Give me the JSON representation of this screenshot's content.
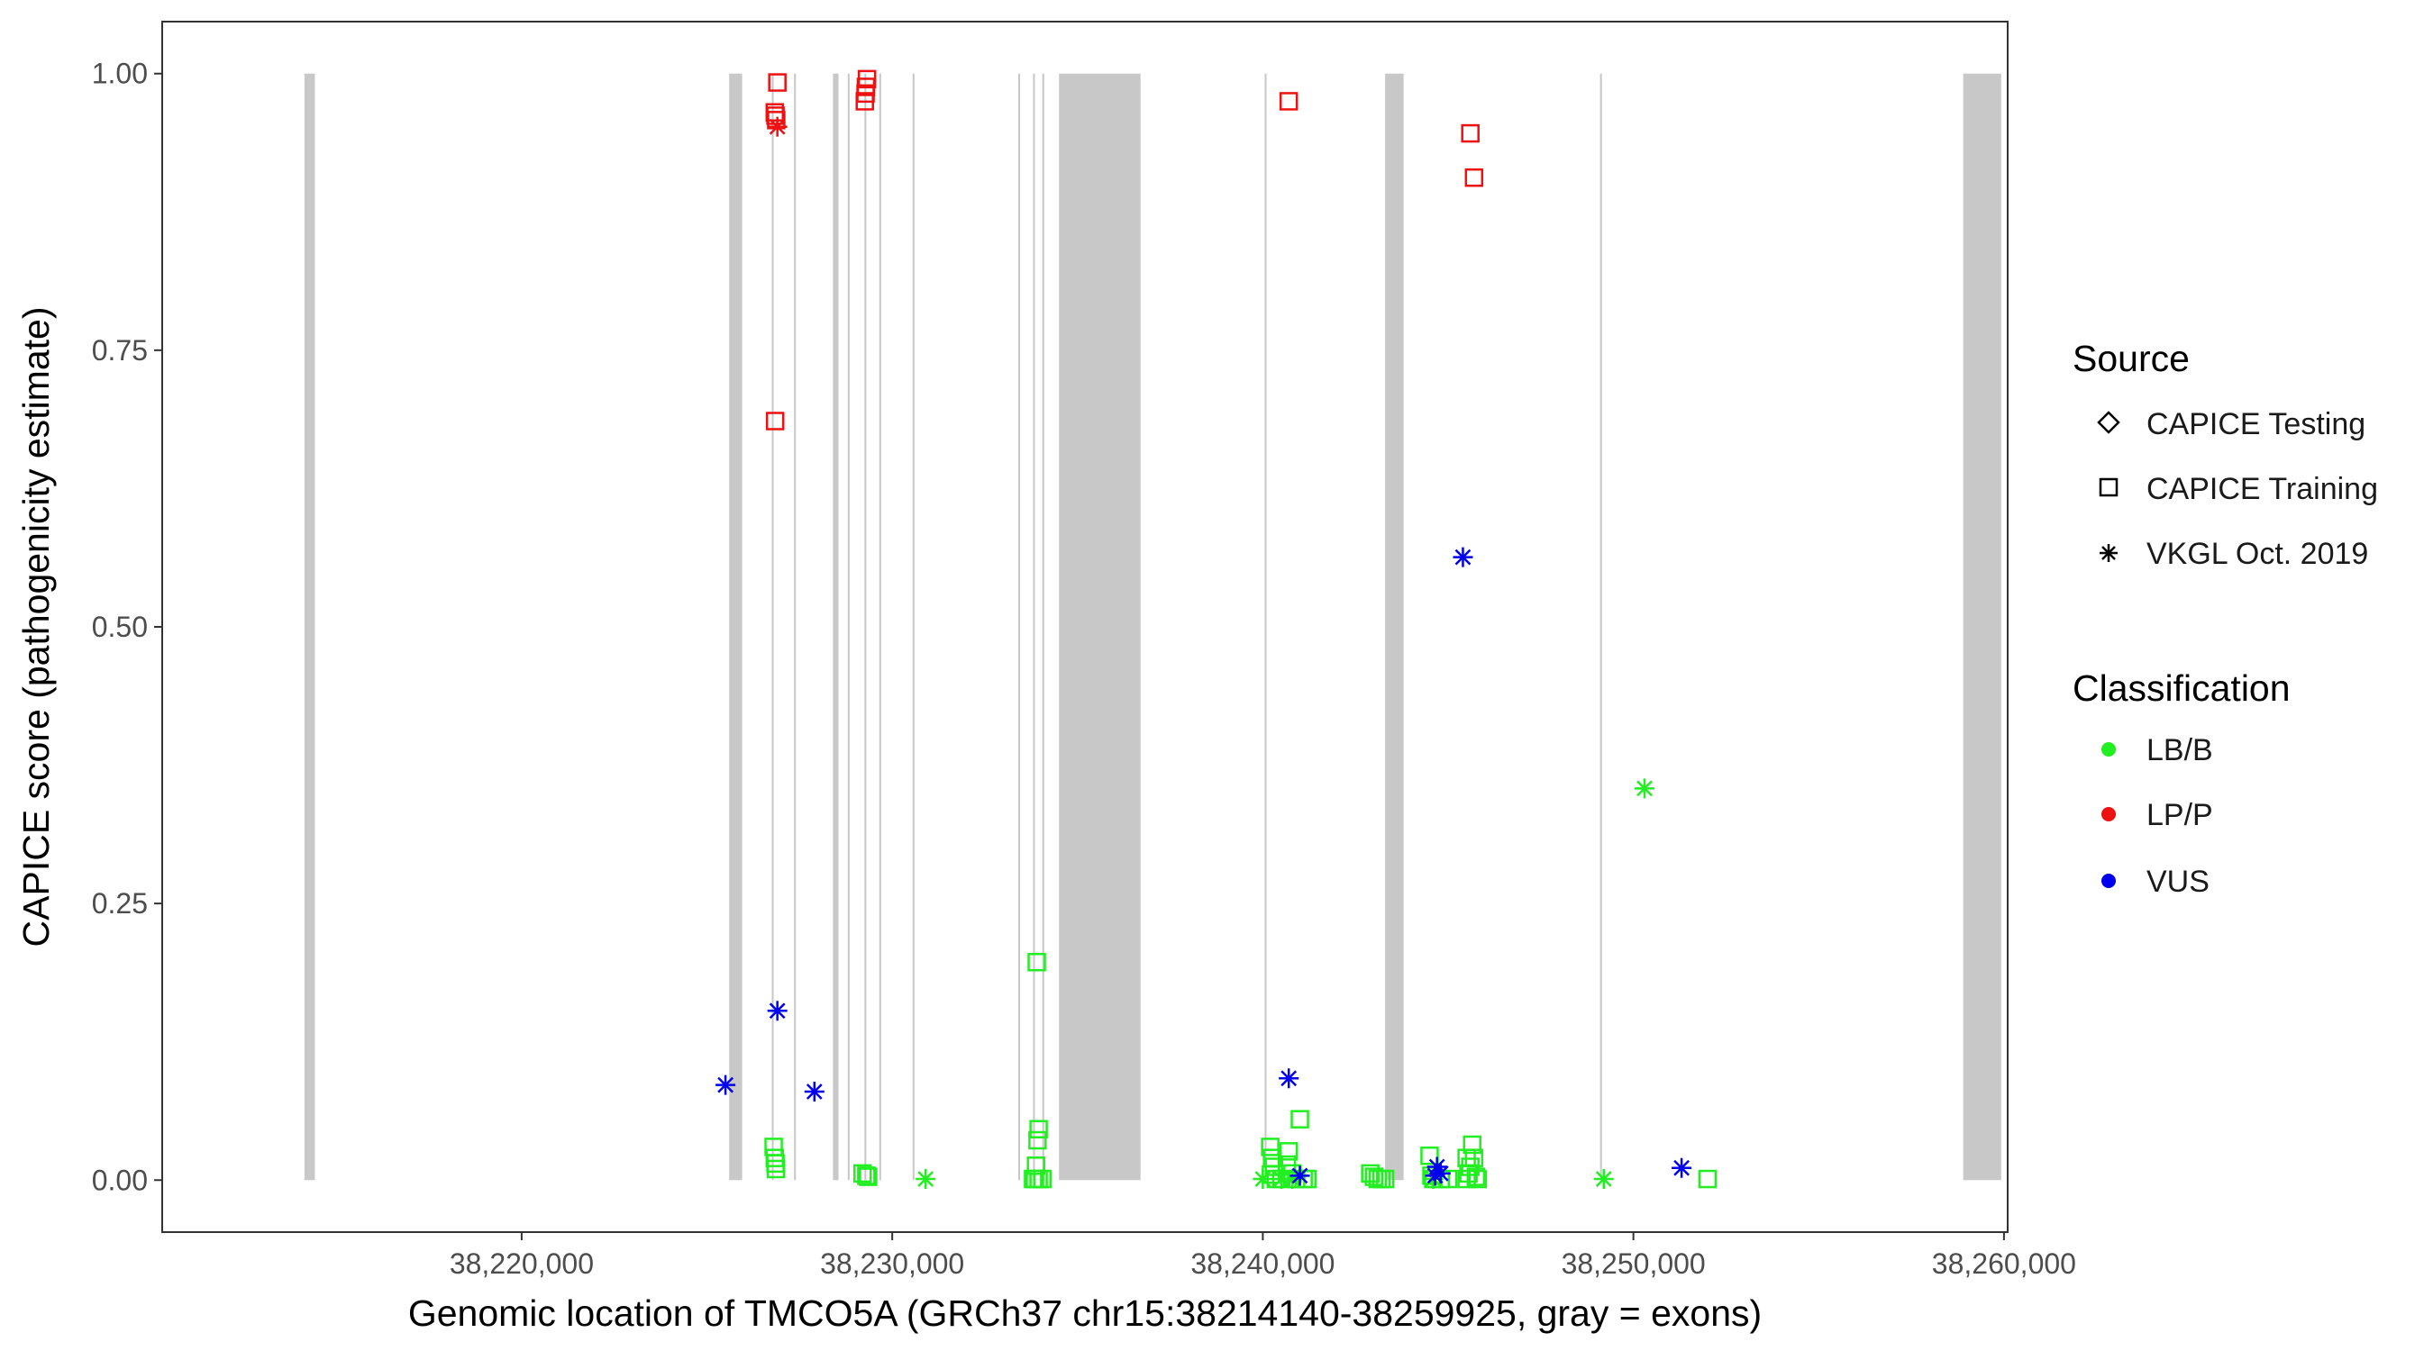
{
  "chart_data": {
    "type": "scatter",
    "title": "",
    "xlabel": "Genomic location of TMCO5A (GRCh37 chr15:38214140-38259925, gray = exons)",
    "ylabel": "CAPICE score (pathogenicity estimate)",
    "xlim": [
      38210300,
      38260100
    ],
    "ylim": [
      -0.047,
      1.047
    ],
    "x_ticks": [
      38220000,
      38230000,
      38240000,
      38250000,
      38260000
    ],
    "x_tick_labels": [
      "38,220,000",
      "38,230,000",
      "38,240,000",
      "38,250,000",
      "38,260,000"
    ],
    "y_ticks": [
      0,
      0.25,
      0.5,
      0.75,
      1.0
    ],
    "y_tick_labels": [
      "0.00",
      "0.25",
      "0.50",
      "0.75",
      "1.00"
    ],
    "grid": false,
    "exon_color": "#c8c8c8",
    "exons": [
      [
        38214140,
        38214420
      ],
      [
        38225600,
        38225950
      ],
      [
        38226750,
        38226800
      ],
      [
        38227350,
        38227400
      ],
      [
        38228400,
        38228550
      ],
      [
        38228800,
        38228850
      ],
      [
        38229250,
        38229300
      ],
      [
        38229650,
        38229700
      ],
      [
        38230550,
        38230600
      ],
      [
        38233400,
        38233450
      ],
      [
        38233800,
        38233850
      ],
      [
        38234050,
        38234100
      ],
      [
        38234500,
        38236700
      ],
      [
        38240050,
        38240100
      ],
      [
        38243300,
        38243800
      ],
      [
        38249100,
        38249150
      ],
      [
        38258900,
        38259925
      ]
    ],
    "legend": {
      "placement": "right",
      "source_title": "Source",
      "source_items": [
        {
          "label": "CAPICE Testing",
          "shape": "diamond"
        },
        {
          "label": "CAPICE Training",
          "shape": "square"
        },
        {
          "label": "VKGL Oct. 2019",
          "shape": "asterisk"
        }
      ],
      "class_title": "Classification",
      "class_items": [
        {
          "label": "LB/B",
          "color": "#22ee22"
        },
        {
          "label": "LP/P",
          "color": "#ee1111"
        },
        {
          "label": "VUS",
          "color": "#0000ee"
        }
      ]
    },
    "series": [
      {
        "source": "CAPICE Training",
        "classification": "LP/P",
        "points": [
          [
            38226900,
            0.992
          ],
          [
            38226830,
            0.965
          ],
          [
            38226850,
            0.962
          ],
          [
            38226870,
            0.958
          ],
          [
            38226840,
            0.686
          ],
          [
            38229320,
            0.995
          ],
          [
            38229290,
            0.988
          ],
          [
            38229280,
            0.982
          ],
          [
            38229260,
            0.975
          ],
          [
            38240700,
            0.975
          ],
          [
            38245600,
            0.946
          ],
          [
            38245700,
            0.906
          ]
        ]
      },
      {
        "source": "VKGL Oct. 2019",
        "classification": "LP/P",
        "points": [
          [
            38226900,
            0.952
          ]
        ]
      },
      {
        "source": "CAPICE Training",
        "classification": "LB/B",
        "points": [
          [
            38226800,
            0.03
          ],
          [
            38226830,
            0.02
          ],
          [
            38226850,
            0.015
          ],
          [
            38226860,
            0.01
          ],
          [
            38229200,
            0.006
          ],
          [
            38229300,
            0.004
          ],
          [
            38229350,
            0.003
          ],
          [
            38233900,
            0.197
          ],
          [
            38233950,
            0.046
          ],
          [
            38233920,
            0.036
          ],
          [
            38233880,
            0.013
          ],
          [
            38233800,
            0.001
          ],
          [
            38233850,
            0.001
          ],
          [
            38233950,
            0.001
          ],
          [
            38234050,
            0.001
          ],
          [
            38240200,
            0.03
          ],
          [
            38240250,
            0.02
          ],
          [
            38240300,
            0.012
          ],
          [
            38240220,
            0.005
          ],
          [
            38240350,
            0.001
          ],
          [
            38240500,
            0.001
          ],
          [
            38240700,
            0.026
          ],
          [
            38240650,
            0.014
          ],
          [
            38240800,
            0.006
          ],
          [
            38240900,
            0.001
          ],
          [
            38241100,
            0.001
          ],
          [
            38241000,
            0.055
          ],
          [
            38241200,
            0.001
          ],
          [
            38242900,
            0.006
          ],
          [
            38243000,
            0.003
          ],
          [
            38243100,
            0.001
          ],
          [
            38243300,
            0.001
          ],
          [
            38243200,
            0.001
          ],
          [
            38244500,
            0.022
          ],
          [
            38244550,
            0.004
          ],
          [
            38244600,
            0.001
          ],
          [
            38244800,
            0.001
          ],
          [
            38245000,
            0.001
          ],
          [
            38245500,
            0.02
          ],
          [
            38245600,
            0.012
          ],
          [
            38245650,
            0.032
          ],
          [
            38245700,
            0.02
          ],
          [
            38245550,
            0.006
          ],
          [
            38245750,
            0.003
          ],
          [
            38245800,
            0.001
          ],
          [
            38245500,
            0.001
          ],
          [
            38252000,
            0.001
          ]
        ]
      },
      {
        "source": "VKGL Oct. 2019",
        "classification": "LB/B",
        "points": [
          [
            38230900,
            0.001
          ],
          [
            38240000,
            0.001
          ],
          [
            38240500,
            0.001
          ],
          [
            38240800,
            0.001
          ],
          [
            38244600,
            0.001
          ],
          [
            38249200,
            0.001
          ],
          [
            38250300,
            0.354
          ]
        ]
      },
      {
        "source": "VKGL Oct. 2019",
        "classification": "VUS",
        "points": [
          [
            38225500,
            0.086
          ],
          [
            38226900,
            0.153
          ],
          [
            38227900,
            0.08
          ],
          [
            38240700,
            0.092
          ],
          [
            38241000,
            0.004
          ],
          [
            38244700,
            0.012
          ],
          [
            38244800,
            0.006
          ],
          [
            38244650,
            0.004
          ],
          [
            38245400,
            0.563
          ],
          [
            38251300,
            0.011
          ]
        ]
      }
    ]
  }
}
